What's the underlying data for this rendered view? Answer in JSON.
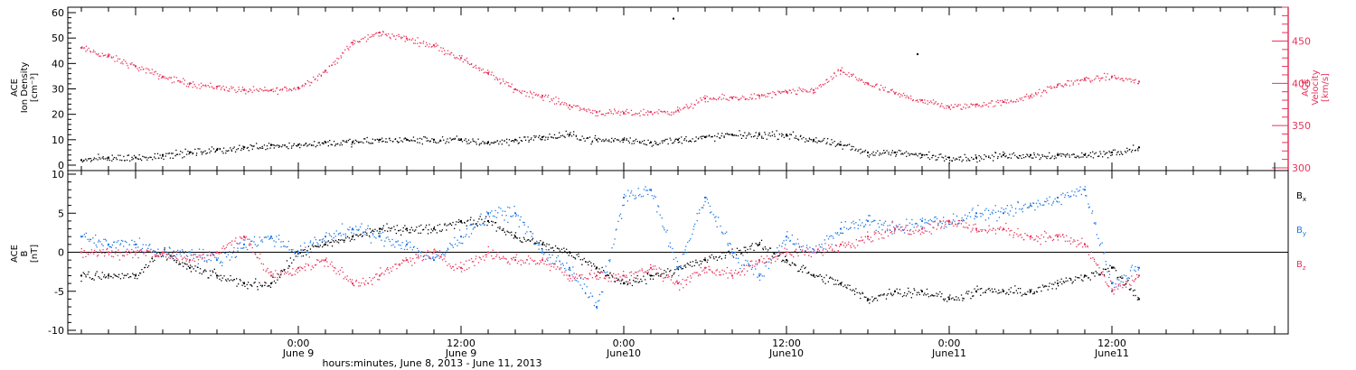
{
  "chart_data": [
    {
      "type": "scatter",
      "panel": "plasma",
      "ylabel": [
        "ACE",
        "Ion Density",
        "[cm⁻³]"
      ],
      "ylabel_right": [
        "ACE",
        "Velocity",
        "[km/s]"
      ],
      "ylim": [
        0,
        60
      ],
      "yticks": [
        0,
        10,
        20,
        30,
        40,
        50,
        60
      ],
      "ylim_right": [
        300,
        490
      ],
      "yticks_right": [
        300,
        350,
        400,
        450
      ],
      "series": [
        {
          "axis": "left",
          "color": "#000000",
          "x": [
            -16,
            -14,
            -12,
            -10,
            -8,
            -6,
            -4,
            -2,
            0,
            2,
            4,
            6,
            8,
            10,
            12,
            14,
            16,
            18,
            20,
            22,
            24,
            26,
            28,
            30,
            32,
            34,
            36,
            38,
            40,
            42,
            44,
            46,
            48,
            50,
            52,
            54,
            56,
            58,
            60,
            62
          ],
          "y": [
            2,
            3,
            3,
            4,
            5,
            6,
            7,
            8,
            8,
            9,
            9,
            10,
            10,
            10,
            10,
            9,
            10,
            11,
            12,
            10,
            10,
            9,
            10,
            11,
            12,
            12,
            12,
            10,
            8,
            5,
            5,
            4,
            3,
            3,
            4,
            4,
            4,
            4,
            5,
            7
          ]
        },
        {
          "axis": "right",
          "color": "#e8345a",
          "x": [
            -16,
            -14,
            -12,
            -10,
            -8,
            -6,
            -4,
            -2,
            0,
            2,
            4,
            6,
            8,
            10,
            12,
            14,
            16,
            18,
            20,
            22,
            24,
            26,
            28,
            30,
            32,
            34,
            36,
            38,
            40,
            42,
            44,
            46,
            48,
            50,
            52,
            54,
            56,
            58,
            60,
            62
          ],
          "y": [
            442,
            432,
            420,
            408,
            400,
            396,
            392,
            392,
            395,
            415,
            448,
            460,
            453,
            445,
            430,
            412,
            393,
            385,
            374,
            366,
            365,
            366,
            368,
            382,
            383,
            385,
            390,
            392,
            415,
            400,
            388,
            380,
            372,
            375,
            378,
            385,
            398,
            405,
            408,
            402
          ]
        }
      ]
    },
    {
      "type": "scatter",
      "panel": "magnetic-field",
      "ylabel": [
        "ACE",
        "B",
        "[nT]"
      ],
      "ylim": [
        -10,
        10
      ],
      "yticks": [
        -10,
        -5,
        0,
        5,
        10
      ],
      "legend": "right",
      "series": [
        {
          "name": "Bx",
          "color": "#000000",
          "x": [
            -16,
            -14,
            -12,
            -10,
            -8,
            -6,
            -4,
            -2,
            0,
            2,
            4,
            6,
            8,
            10,
            12,
            14,
            16,
            18,
            20,
            22,
            24,
            26,
            28,
            30,
            32,
            34,
            36,
            38,
            40,
            42,
            44,
            46,
            48,
            50,
            52,
            54,
            56,
            58,
            60,
            62
          ],
          "y": [
            -3,
            -3,
            -3,
            0,
            -2,
            -3,
            -4,
            -4,
            0,
            1,
            2,
            3,
            3,
            3,
            4,
            4,
            2,
            1,
            0,
            -2,
            -4,
            -3,
            -2,
            -1,
            0,
            1,
            -1,
            -3,
            -4,
            -6,
            -5,
            -5,
            -6,
            -5,
            -5,
            -5,
            -4,
            -3,
            -2,
            -6
          ]
        },
        {
          "name": "By",
          "color": "#1e78e6",
          "x": [
            -16,
            -14,
            -12,
            -10,
            -8,
            -6,
            -4,
            -2,
            0,
            2,
            4,
            6,
            8,
            10,
            12,
            14,
            16,
            18,
            20,
            22,
            24,
            26,
            28,
            30,
            32,
            34,
            36,
            38,
            40,
            42,
            44,
            46,
            48,
            50,
            52,
            54,
            56,
            58,
            60,
            62
          ],
          "y": [
            2,
            1,
            1,
            0,
            0,
            -1,
            1,
            2,
            0,
            2,
            3,
            2,
            1,
            -1,
            2,
            5,
            5,
            0,
            -2,
            -7,
            7,
            8,
            -2,
            7,
            0,
            -3,
            2,
            0,
            3,
            4,
            3,
            4,
            4,
            5,
            5,
            6,
            7,
            8,
            -4,
            -2
          ]
        },
        {
          "name": "Bz",
          "color": "#e8345a",
          "x": [
            -16,
            -14,
            -12,
            -10,
            -8,
            -6,
            -4,
            -2,
            0,
            2,
            4,
            6,
            8,
            10,
            12,
            14,
            16,
            18,
            20,
            22,
            24,
            26,
            28,
            30,
            32,
            34,
            36,
            38,
            40,
            42,
            44,
            46,
            48,
            50,
            52,
            54,
            56,
            58,
            60,
            62
          ],
          "y": [
            0,
            0,
            0,
            0,
            -1,
            0,
            2,
            -3,
            -2,
            -1,
            -4,
            -3,
            -1,
            0,
            -2,
            0,
            -1,
            -1,
            -3,
            -3,
            -3,
            -2,
            -4,
            -2,
            -3,
            -1,
            0,
            0,
            1,
            2,
            3,
            3,
            4,
            3,
            3,
            2,
            2,
            1,
            -5,
            -3
          ]
        }
      ]
    }
  ],
  "legend_labels": [
    {
      "main": "B",
      "sub": "x",
      "color": "#000000"
    },
    {
      "main": "B",
      "sub": "y",
      "color": "#1e78e6"
    },
    {
      "main": "B",
      "sub": "z",
      "color": "#e8345a"
    }
  ],
  "x_axis": {
    "range": [
      -17,
      73
    ],
    "major_ticks": [
      {
        "x": 0,
        "line1": "0:00",
        "line2": "June 9"
      },
      {
        "x": 12,
        "line1": "12:00",
        "line2": "June 9"
      },
      {
        "x": 24,
        "line1": "0:00",
        "line2": "June10"
      },
      {
        "x": 36,
        "line1": "12:00",
        "line2": "June10"
      },
      {
        "x": 48,
        "line1": "0:00",
        "line2": "June11"
      },
      {
        "x": 60,
        "line1": "12:00",
        "line2": "June11"
      }
    ],
    "title": "hours:minutes, June  8, 2013 - June 11, 2013"
  },
  "outlier_points": [
    {
      "x": 27.6,
      "y": 58
    },
    {
      "x": 45.6,
      "y": 44
    }
  ]
}
